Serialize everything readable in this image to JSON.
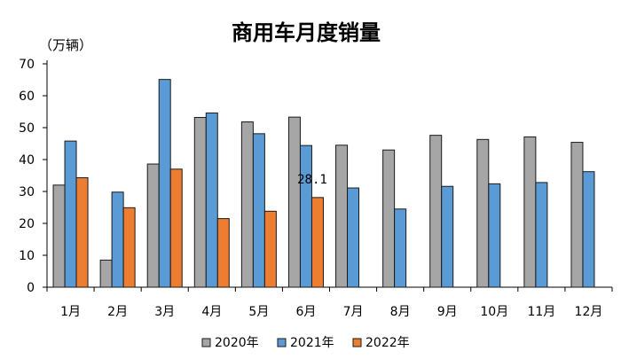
{
  "chart_data": {
    "type": "bar",
    "title": "商用车月度销量",
    "unit_label": "（万辆）",
    "categories": [
      "1月",
      "2月",
      "3月",
      "4月",
      "5月",
      "6月",
      "7月",
      "8月",
      "9月",
      "10月",
      "11月",
      "12月"
    ],
    "ylim": [
      0,
      70
    ],
    "yticks": [
      0,
      10,
      20,
      30,
      40,
      50,
      60,
      70
    ],
    "grid": false,
    "legend_position": "bottom",
    "series": [
      {
        "name": "2020年",
        "color": "#a6a6a6",
        "values": [
          32,
          8.5,
          38.6,
          53.2,
          51.8,
          53.3,
          44.5,
          43,
          47.6,
          46.3,
          47.1,
          45.4
        ]
      },
      {
        "name": "2021年",
        "color": "#5b9bd5",
        "values": [
          45.8,
          29.8,
          65.1,
          54.6,
          48.1,
          44.4,
          31.1,
          24.5,
          31.6,
          32.4,
          32.8,
          36.2
        ]
      },
      {
        "name": "2022年",
        "color": "#ed7d31",
        "values": [
          34.3,
          24.9,
          37,
          21.5,
          23.8,
          28.1,
          null,
          null,
          null,
          null,
          null,
          null
        ]
      }
    ],
    "annotations": [
      {
        "category": "6月",
        "series": "2022年",
        "text": "28.1"
      }
    ]
  }
}
